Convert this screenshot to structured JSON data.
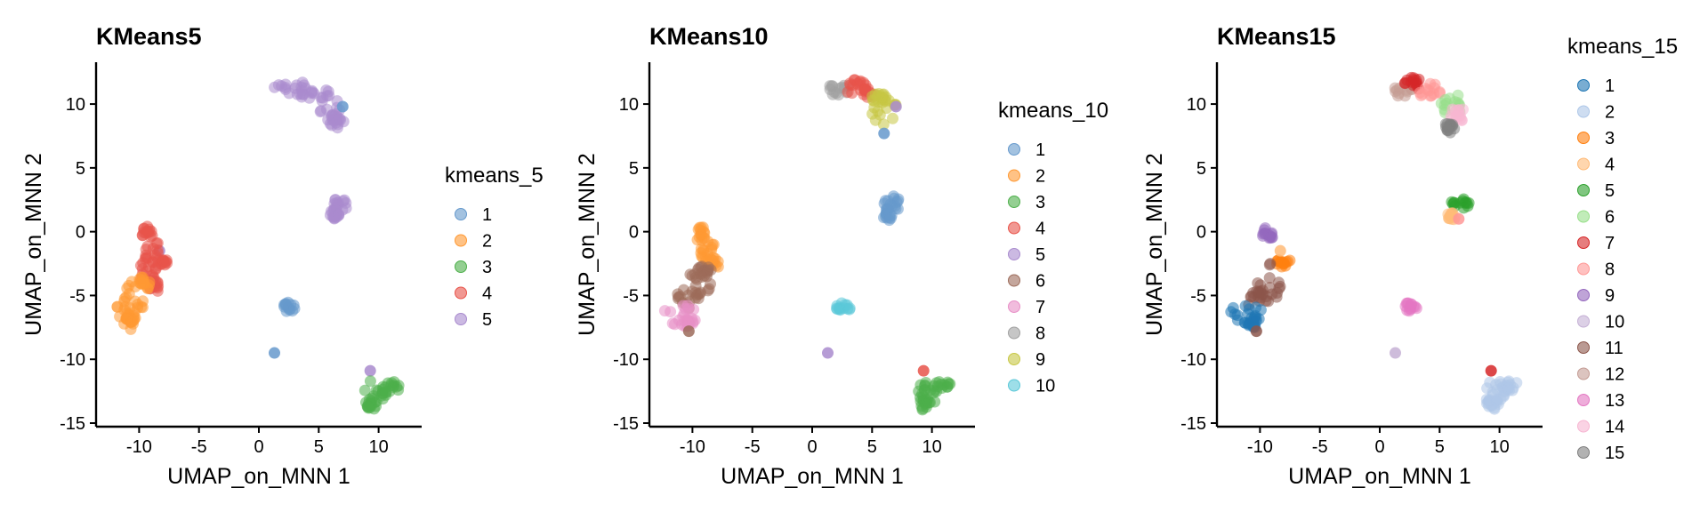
{
  "chart_data": [
    {
      "type": "scatter",
      "title": "KMeans5",
      "xlabel": "UMAP_on_MNN 1",
      "ylabel": "UMAP_on_MNN 2",
      "xlim": [
        -13,
        13
      ],
      "ylim": [
        -15,
        13
      ],
      "xticks": [
        -10,
        -5,
        0,
        5,
        10
      ],
      "yticks": [
        -15,
        -10,
        -5,
        0,
        5,
        10
      ],
      "legend": {
        "title": "kmeans_5",
        "position": "right",
        "entries": [
          {
            "label": "1",
            "color": "#6699CC"
          },
          {
            "label": "2",
            "color": "#FF9933"
          },
          {
            "label": "3",
            "color": "#4DAF4A"
          },
          {
            "label": "4",
            "color": "#E8534A"
          },
          {
            "label": "5",
            "color": "#A98BCE"
          }
        ]
      },
      "clusters": [
        {
          "cluster": "5",
          "shape": "blob",
          "cx": 2.6,
          "cy": 11.3,
          "rx": 1.3,
          "ry": 0.7
        },
        {
          "cluster": "5",
          "shape": "blob",
          "cx": 4.5,
          "cy": 10.7,
          "rx": 1.5,
          "ry": 0.6
        },
        {
          "cluster": "5",
          "shape": "blob",
          "cx": 6.0,
          "cy": 9.7,
          "rx": 0.9,
          "ry": 1.2
        },
        {
          "cluster": "5",
          "shape": "blob",
          "cx": 6.5,
          "cy": 8.7,
          "rx": 0.6,
          "ry": 0.6
        },
        {
          "cluster": "5",
          "shape": "blob",
          "cx": 6.8,
          "cy": 2.2,
          "rx": 0.8,
          "ry": 0.6
        },
        {
          "cluster": "5",
          "shape": "blob",
          "cx": 6.3,
          "cy": 1.3,
          "rx": 0.4,
          "ry": 0.5
        },
        {
          "cluster": "5",
          "shape": "point",
          "cx": 9.3,
          "cy": -10.9
        },
        {
          "cluster": "5",
          "shape": "point",
          "cx": -8.3,
          "cy": -1.5
        },
        {
          "cluster": "1",
          "shape": "blob",
          "cx": 2.6,
          "cy": -5.9,
          "rx": 0.6,
          "ry": 0.4
        },
        {
          "cluster": "1",
          "shape": "point",
          "cx": 1.3,
          "cy": -9.5
        },
        {
          "cluster": "1",
          "shape": "point",
          "cx": 7.0,
          "cy": 9.8
        },
        {
          "cluster": "3",
          "shape": "blob",
          "cx": 9.7,
          "cy": -12.6,
          "rx": 1.0,
          "ry": 1.0
        },
        {
          "cluster": "3",
          "shape": "blob",
          "cx": 10.9,
          "cy": -12.2,
          "rx": 0.8,
          "ry": 0.5
        },
        {
          "cluster": "3",
          "shape": "blob",
          "cx": 9.4,
          "cy": -13.4,
          "rx": 0.5,
          "ry": 0.6
        },
        {
          "cluster": "4",
          "shape": "blob",
          "cx": -9.3,
          "cy": -0.1,
          "rx": 0.5,
          "ry": 0.7
        },
        {
          "cluster": "4",
          "shape": "blob",
          "cx": -8.9,
          "cy": -1.6,
          "rx": 0.7,
          "ry": 1.0
        },
        {
          "cluster": "4",
          "shape": "blob",
          "cx": -8.2,
          "cy": -2.4,
          "rx": 0.7,
          "ry": 0.4
        },
        {
          "cluster": "4",
          "shape": "blob",
          "cx": -9.3,
          "cy": -3.1,
          "rx": 0.9,
          "ry": 0.8
        },
        {
          "cluster": "4",
          "shape": "blob",
          "cx": -8.8,
          "cy": -4.3,
          "rx": 0.5,
          "ry": 0.5
        },
        {
          "cluster": "2",
          "shape": "blob",
          "cx": -10.3,
          "cy": -5.2,
          "rx": 1.0,
          "ry": 1.4
        },
        {
          "cluster": "2",
          "shape": "blob",
          "cx": -11.2,
          "cy": -6.4,
          "rx": 1.3,
          "ry": 0.8
        },
        {
          "cluster": "2",
          "shape": "blob",
          "cx": -9.6,
          "cy": -4.1,
          "rx": 0.6,
          "ry": 0.6
        },
        {
          "cluster": "2",
          "shape": "blob",
          "cx": -10.8,
          "cy": -7.2,
          "rx": 0.6,
          "ry": 0.5
        }
      ]
    },
    {
      "type": "scatter",
      "title": "KMeans10",
      "xlabel": "UMAP_on_MNN 1",
      "ylabel": "UMAP_on_MNN 2",
      "xlim": [
        -13,
        13
      ],
      "ylim": [
        -15,
        13
      ],
      "xticks": [
        -10,
        -5,
        0,
        5,
        10
      ],
      "yticks": [
        -15,
        -10,
        -5,
        0,
        5,
        10
      ],
      "legend": {
        "title": "kmeans_10",
        "position": "right",
        "entries": [
          {
            "label": "1",
            "color": "#6699CC"
          },
          {
            "label": "2",
            "color": "#FF9933"
          },
          {
            "label": "3",
            "color": "#4DAF4A"
          },
          {
            "label": "4",
            "color": "#E8534A"
          },
          {
            "label": "5",
            "color": "#A98BCE"
          },
          {
            "label": "6",
            "color": "#9C6B5A"
          },
          {
            "label": "7",
            "color": "#E88FC7"
          },
          {
            "label": "8",
            "color": "#A0A0A0"
          },
          {
            "label": "9",
            "color": "#C7C744"
          },
          {
            "label": "10",
            "color": "#5BC8D8"
          }
        ]
      },
      "clusters": [
        {
          "cluster": "8",
          "shape": "blob",
          "cx": 2.2,
          "cy": 11.2,
          "rx": 0.9,
          "ry": 0.6
        },
        {
          "cluster": "4",
          "shape": "blob",
          "cx": 3.6,
          "cy": 11.3,
          "rx": 1.0,
          "ry": 0.6
        },
        {
          "cluster": "4",
          "shape": "blob",
          "cx": 4.8,
          "cy": 10.9,
          "rx": 0.6,
          "ry": 0.4
        },
        {
          "cluster": "9",
          "shape": "blob",
          "cx": 6.0,
          "cy": 9.5,
          "rx": 1.1,
          "ry": 1.3
        },
        {
          "cluster": "9",
          "shape": "blob",
          "cx": 5.6,
          "cy": 10.4,
          "rx": 0.7,
          "ry": 0.5
        },
        {
          "cluster": "5",
          "shape": "point",
          "cx": 7.0,
          "cy": 9.8
        },
        {
          "cluster": "1",
          "shape": "point",
          "cx": 6.0,
          "cy": 7.7
        },
        {
          "cluster": "1",
          "shape": "blob",
          "cx": 6.8,
          "cy": 2.2,
          "rx": 0.8,
          "ry": 0.6
        },
        {
          "cluster": "1",
          "shape": "blob",
          "cx": 6.3,
          "cy": 1.3,
          "rx": 0.4,
          "ry": 0.5
        },
        {
          "cluster": "10",
          "shape": "blob",
          "cx": 2.6,
          "cy": -5.9,
          "rx": 0.6,
          "ry": 0.4
        },
        {
          "cluster": "5",
          "shape": "point",
          "cx": 1.3,
          "cy": -9.5
        },
        {
          "cluster": "3",
          "shape": "blob",
          "cx": 9.7,
          "cy": -12.6,
          "rx": 1.0,
          "ry": 1.0
        },
        {
          "cluster": "3",
          "shape": "blob",
          "cx": 10.9,
          "cy": -12.2,
          "rx": 0.8,
          "ry": 0.5
        },
        {
          "cluster": "3",
          "shape": "blob",
          "cx": 9.4,
          "cy": -13.4,
          "rx": 0.5,
          "ry": 0.6
        },
        {
          "cluster": "4",
          "shape": "point",
          "cx": 9.3,
          "cy": -10.9
        },
        {
          "cluster": "2",
          "shape": "blob",
          "cx": -9.3,
          "cy": -0.2,
          "rx": 0.5,
          "ry": 0.6
        },
        {
          "cluster": "2",
          "shape": "blob",
          "cx": -8.8,
          "cy": -1.5,
          "rx": 0.7,
          "ry": 0.9
        },
        {
          "cluster": "2",
          "shape": "blob",
          "cx": -8.3,
          "cy": -2.5,
          "rx": 0.7,
          "ry": 0.4
        },
        {
          "cluster": "6",
          "shape": "blob",
          "cx": -9.5,
          "cy": -4.2,
          "rx": 1.0,
          "ry": 1.3
        },
        {
          "cluster": "6",
          "shape": "blob",
          "cx": -10.3,
          "cy": -5.2,
          "rx": 1.0,
          "ry": 0.8
        },
        {
          "cluster": "6",
          "shape": "blob",
          "cx": -9.0,
          "cy": -3.0,
          "rx": 0.6,
          "ry": 0.6
        },
        {
          "cluster": "7",
          "shape": "blob",
          "cx": -11.0,
          "cy": -6.5,
          "rx": 1.5,
          "ry": 0.8
        },
        {
          "cluster": "7",
          "shape": "blob",
          "cx": -10.4,
          "cy": -7.1,
          "rx": 0.6,
          "ry": 0.4
        },
        {
          "cluster": "6",
          "shape": "point",
          "cx": -10.3,
          "cy": -7.8
        }
      ]
    },
    {
      "type": "scatter",
      "title": "KMeans15",
      "xlabel": "UMAP_on_MNN 1",
      "ylabel": "UMAP_on_MNN 2",
      "xlim": [
        -13,
        13
      ],
      "ylim": [
        -15,
        13
      ],
      "xticks": [
        -10,
        -5,
        0,
        5,
        10
      ],
      "yticks": [
        -15,
        -10,
        -5,
        0,
        5,
        10
      ],
      "legend": {
        "title": "kmeans_15",
        "position": "right",
        "entries": [
          {
            "label": "1",
            "color": "#1F77B4"
          },
          {
            "label": "2",
            "color": "#AEC7E8"
          },
          {
            "label": "3",
            "color": "#FF7F0E"
          },
          {
            "label": "4",
            "color": "#FFBB78"
          },
          {
            "label": "5",
            "color": "#2CA02C"
          },
          {
            "label": "6",
            "color": "#98DF8A"
          },
          {
            "label": "7",
            "color": "#D62728"
          },
          {
            "label": "8",
            "color": "#FF9896"
          },
          {
            "label": "9",
            "color": "#9467BD"
          },
          {
            "label": "10",
            "color": "#C5B0D5"
          },
          {
            "label": "11",
            "color": "#8C564B"
          },
          {
            "label": "12",
            "color": "#C49C94"
          },
          {
            "label": "13",
            "color": "#E377C2"
          },
          {
            "label": "14",
            "color": "#F7B6D2"
          },
          {
            "label": "15",
            "color": "#7F7F7F"
          }
        ]
      },
      "clusters": [
        {
          "cluster": "12",
          "shape": "blob",
          "cx": 2.0,
          "cy": 11.1,
          "rx": 0.8,
          "ry": 0.6
        },
        {
          "cluster": "7",
          "shape": "blob",
          "cx": 2.9,
          "cy": 11.6,
          "rx": 0.8,
          "ry": 0.5
        },
        {
          "cluster": "8",
          "shape": "blob",
          "cx": 4.2,
          "cy": 11.0,
          "rx": 1.0,
          "ry": 0.6
        },
        {
          "cluster": "6",
          "shape": "blob",
          "cx": 5.9,
          "cy": 10.0,
          "rx": 1.1,
          "ry": 0.9
        },
        {
          "cluster": "14",
          "shape": "blob",
          "cx": 6.5,
          "cy": 9.2,
          "rx": 0.6,
          "ry": 0.6
        },
        {
          "cluster": "15",
          "shape": "blob",
          "cx": 5.9,
          "cy": 8.3,
          "rx": 0.4,
          "ry": 0.6
        },
        {
          "cluster": "5",
          "shape": "blob",
          "cx": 6.8,
          "cy": 2.3,
          "rx": 0.8,
          "ry": 0.5
        },
        {
          "cluster": "4",
          "shape": "blob",
          "cx": 5.9,
          "cy": 1.2,
          "rx": 0.4,
          "ry": 0.4
        },
        {
          "cluster": "8",
          "shape": "point",
          "cx": 6.6,
          "cy": 1.0
        },
        {
          "cluster": "13",
          "shape": "blob",
          "cx": 2.6,
          "cy": -5.9,
          "rx": 0.5,
          "ry": 0.4
        },
        {
          "cluster": "10",
          "shape": "point",
          "cx": 1.3,
          "cy": -9.5
        },
        {
          "cluster": "2",
          "shape": "blob",
          "cx": 9.6,
          "cy": -12.6,
          "rx": 1.0,
          "ry": 1.0
        },
        {
          "cluster": "2",
          "shape": "blob",
          "cx": 10.9,
          "cy": -12.2,
          "rx": 0.8,
          "ry": 0.5
        },
        {
          "cluster": "2",
          "shape": "blob",
          "cx": 9.4,
          "cy": -13.4,
          "rx": 0.5,
          "ry": 0.6
        },
        {
          "cluster": "7",
          "shape": "point",
          "cx": 9.3,
          "cy": -10.9
        },
        {
          "cluster": "9",
          "shape": "blob",
          "cx": -9.4,
          "cy": -0.2,
          "rx": 0.5,
          "ry": 0.6
        },
        {
          "cluster": "3",
          "shape": "blob",
          "cx": -8.1,
          "cy": -2.4,
          "rx": 0.7,
          "ry": 0.4
        },
        {
          "cluster": "4",
          "shape": "point",
          "cx": -8.3,
          "cy": -1.5
        },
        {
          "cluster": "11",
          "shape": "blob",
          "cx": -9.3,
          "cy": -4.0,
          "rx": 1.0,
          "ry": 1.6
        },
        {
          "cluster": "11",
          "shape": "blob",
          "cx": -10.2,
          "cy": -5.2,
          "rx": 1.0,
          "ry": 0.8
        },
        {
          "cluster": "1",
          "shape": "blob",
          "cx": -11.0,
          "cy": -6.4,
          "rx": 1.5,
          "ry": 0.8
        },
        {
          "cluster": "1",
          "shape": "blob",
          "cx": -10.5,
          "cy": -7.1,
          "rx": 0.6,
          "ry": 0.4
        },
        {
          "cluster": "11",
          "shape": "point",
          "cx": -10.3,
          "cy": -7.8
        }
      ]
    }
  ]
}
